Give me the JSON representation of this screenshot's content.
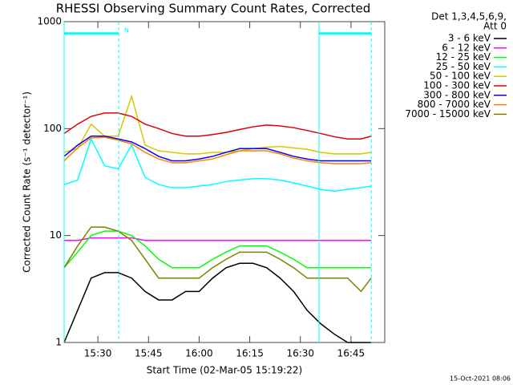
{
  "chart_data": {
    "type": "line",
    "title": "RHESSI Observing Summary Count Rates, Corrected",
    "header": [
      "Det 1,3,4,5,6,9,",
      "Att 0"
    ],
    "xlabel": "Start Time (02-Mar-05 15:19:22)",
    "ylabel": "Corrected Count Rate (s⁻¹ detector⁻¹)",
    "footer": "15-Oct-2021 08:06",
    "log_y": true,
    "xlim": [
      920,
      1015
    ],
    "ylim": [
      1,
      1000
    ],
    "xticks": [
      {
        "value": 930,
        "label": "15:30"
      },
      {
        "value": 945,
        "label": "15:45"
      },
      {
        "value": 960,
        "label": "16:00"
      },
      {
        "value": 975,
        "label": "16:15"
      },
      {
        "value": 990,
        "label": "16:30"
      },
      {
        "value": 1005,
        "label": "16:45"
      }
    ],
    "yticks": [
      1,
      10,
      100,
      1000
    ],
    "x": [
      920,
      924,
      928,
      932,
      936,
      940,
      944,
      948,
      952,
      956,
      960,
      964,
      968,
      972,
      976,
      980,
      984,
      988,
      992,
      996,
      1000,
      1004,
      1008,
      1011
    ],
    "series": [
      {
        "name": "3 - 6 keV",
        "color": "#000000",
        "values": [
          1,
          2,
          4,
          4.5,
          4.5,
          4,
          3,
          2.5,
          2.5,
          3,
          3,
          4,
          5,
          5.5,
          5.5,
          5,
          4,
          3,
          2,
          1.5,
          1.2,
          1,
          1,
          1
        ]
      },
      {
        "name": "6 - 12 keV",
        "color": "#ff00ff",
        "values": [
          9,
          9,
          9.5,
          9.5,
          9.5,
          9.5,
          9,
          9,
          9,
          9,
          9,
          9,
          9,
          9,
          9,
          9,
          9,
          9,
          9,
          9,
          9,
          9,
          9,
          9
        ]
      },
      {
        "name": "12 - 25 keV",
        "color": "#00ff00",
        "values": [
          5,
          7,
          10,
          11,
          11,
          10,
          8,
          6,
          5,
          5,
          5,
          6,
          7,
          8,
          8,
          8,
          7,
          6,
          5,
          5,
          5,
          5,
          5,
          5
        ]
      },
      {
        "name": "25 - 50 keV",
        "color": "#00ffff",
        "values": [
          30,
          33,
          80,
          45,
          42,
          70,
          35,
          30,
          28,
          28,
          29,
          30,
          32,
          33,
          34,
          34,
          33,
          31,
          29,
          27,
          26,
          27,
          28,
          29
        ]
      },
      {
        "name": "50 - 100 keV",
        "color": "#d4c800",
        "values": [
          60,
          65,
          110,
          85,
          85,
          200,
          70,
          62,
          60,
          58,
          58,
          60,
          60,
          62,
          65,
          67,
          68,
          66,
          64,
          60,
          58,
          58,
          58,
          60
        ]
      },
      {
        "name": "100 - 300 keV",
        "color": "#e00000",
        "values": [
          90,
          110,
          130,
          140,
          140,
          130,
          110,
          100,
          90,
          85,
          85,
          88,
          92,
          98,
          104,
          108,
          106,
          102,
          96,
          90,
          84,
          80,
          80,
          85
        ]
      },
      {
        "name": "300 - 800 keV",
        "color": "#0000ff",
        "values": [
          55,
          70,
          85,
          85,
          80,
          75,
          65,
          55,
          50,
          50,
          52,
          55,
          60,
          65,
          65,
          65,
          60,
          55,
          52,
          50,
          50,
          50,
          50,
          50
        ]
      },
      {
        "name": "800 - 7000 keV",
        "color": "#ff8000",
        "values": [
          50,
          66,
          82,
          83,
          78,
          72,
          60,
          52,
          48,
          48,
          50,
          52,
          57,
          62,
          62,
          62,
          58,
          53,
          50,
          48,
          47,
          47,
          47,
          48
        ]
      },
      {
        "name": "7000 - 15000 keV",
        "color": "#808000",
        "values": [
          5,
          8,
          12,
          12,
          11,
          9,
          6,
          4,
          4,
          4,
          4,
          5,
          6,
          7,
          7,
          7,
          6,
          5,
          4,
          4,
          4,
          4,
          3,
          4
        ]
      }
    ],
    "markers": [
      {
        "x": 920,
        "style": "solid"
      },
      {
        "x": 936.2,
        "style": "dashed"
      },
      {
        "x": 995.5,
        "style": "solid"
      },
      {
        "x": 1011,
        "style": "dashed"
      }
    ],
    "bars": [
      {
        "x": [
          920,
          936.2
        ],
        "y": 775
      },
      {
        "x": [
          995.5,
          1011
        ],
        "y": 775
      }
    ],
    "annotation": {
      "text": "N",
      "x": 938.5,
      "y": 830
    },
    "marker_color": "#00ffff"
  }
}
